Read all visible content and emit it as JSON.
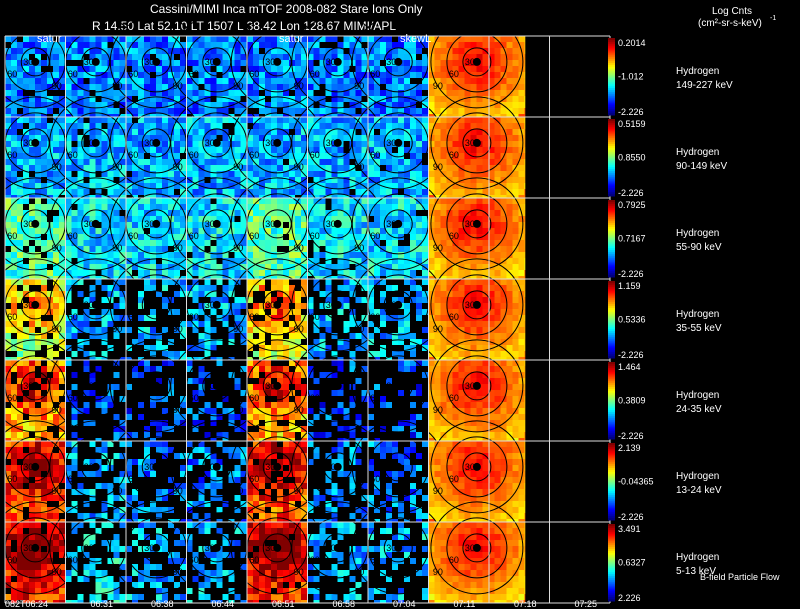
{
  "header": {
    "title": "Cassini/MIMI Inca mTOF  2008-082   Stare   Ions Only",
    "coords": "R      14.50 Lat 52.10 LT 1507 L      38.42 Lon      128.67  MIMI/APL",
    "units_label": "Log Cnts",
    "units": "(cm²-sr-s-keV)",
    "units_sup": "-1"
  },
  "footer": {
    "flow_label": "B-field Particle Flow"
  },
  "colors": {
    "background": "#000000",
    "grid": "#ffffff",
    "ring": "#000000"
  },
  "chart_data": {
    "type": "heatmap",
    "title": "Cassini/MIMI Inca mTOF  2008-082   Stare   Ions Only",
    "time_labels": [
      "082T06:24",
      "06:31",
      "06:38",
      "06:44",
      "06:51",
      "06:58",
      "07:04",
      "07:11",
      "07:18",
      "07:25"
    ],
    "frame_labels": [
      "satur",
      "",
      "",
      "",
      "satur",
      "",
      "skewL",
      "",
      "",
      ""
    ],
    "ring_labels": [
      "30",
      "60",
      "90",
      "120",
      "150"
    ],
    "channels": [
      {
        "species": "Hydrogen",
        "energy": "149-227 keV",
        "max": "0.2014",
        "mid": "-1.012",
        "min": "-2.226"
      },
      {
        "species": "Hydrogen",
        "energy": "90-149 keV",
        "max": "0.5159",
        "mid": "0.8550",
        "min": "-2.226"
      },
      {
        "species": "Hydrogen",
        "energy": "55-90 keV",
        "max": "0.7925",
        "mid": "0.7167",
        "min": "-2.226"
      },
      {
        "species": "Hydrogen",
        "energy": "35-55 keV",
        "max": "1.159",
        "mid": "0.5336",
        "min": "-2.226"
      },
      {
        "species": "Hydrogen",
        "energy": "24-35 keV",
        "max": "1.464",
        "mid": "0.3809",
        "min": "-2.226"
      },
      {
        "species": "Hydrogen",
        "energy": "13-24 keV",
        "max": "2.139",
        "mid": "-0.04365",
        "min": "-2.226"
      },
      {
        "species": "Hydrogen",
        "energy": "5-13 keV",
        "max": "3.491",
        "mid": "0.6327",
        "min": "2.226"
      }
    ],
    "intensity": [
      [
        0.25,
        0.25,
        0.25,
        0.25,
        0.25,
        0.25,
        0.25,
        0.9,
        0.25,
        0.25
      ],
      [
        0.3,
        0.3,
        0.3,
        0.3,
        0.3,
        0.3,
        0.3,
        0.9,
        0.3,
        0.3
      ],
      [
        0.45,
        0.35,
        0.35,
        0.35,
        0.45,
        0.35,
        0.35,
        0.9,
        0.35,
        0.35
      ],
      [
        0.55,
        0.3,
        0.3,
        0.3,
        0.6,
        0.3,
        0.3,
        0.85,
        0.3,
        0.3
      ],
      [
        0.7,
        0.2,
        0.2,
        0.2,
        0.7,
        0.2,
        0.2,
        0.85,
        0.2,
        0.2
      ],
      [
        0.8,
        0.3,
        0.25,
        0.25,
        0.8,
        0.25,
        0.25,
        0.85,
        0.25,
        0.25
      ],
      [
        0.85,
        0.35,
        0.3,
        0.3,
        0.85,
        0.3,
        0.3,
        0.85,
        0.3,
        0.3
      ]
    ],
    "fill": [
      [
        0.9,
        0.9,
        0.9,
        0.9,
        0.9,
        0.9,
        0.9,
        1.0,
        0,
        0
      ],
      [
        0.95,
        0.95,
        0.95,
        0.95,
        0.95,
        0.95,
        0.95,
        1.0,
        0,
        0
      ],
      [
        0.95,
        0.95,
        0.95,
        0.95,
        0.95,
        0.95,
        0.95,
        1.0,
        0,
        0
      ],
      [
        0.85,
        0.5,
        0.5,
        0.5,
        0.85,
        0.5,
        0.5,
        1.0,
        0,
        0
      ],
      [
        0.85,
        0.3,
        0.3,
        0.3,
        0.85,
        0.3,
        0.3,
        1.0,
        0,
        0
      ],
      [
        0.9,
        0.5,
        0.4,
        0.4,
        0.9,
        0.4,
        0.4,
        1.0,
        0,
        0
      ],
      [
        0.9,
        0.55,
        0.45,
        0.45,
        0.9,
        0.45,
        0.45,
        1.0,
        0,
        0
      ]
    ]
  }
}
